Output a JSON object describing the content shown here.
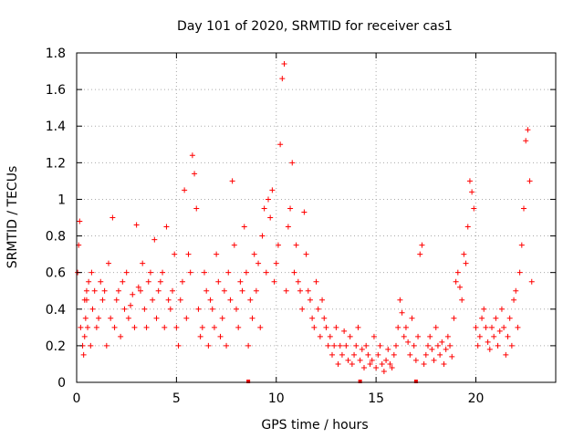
{
  "chart_data": {
    "type": "scatter",
    "title": "Day 101 of 2020, SRMTID for receiver cas1",
    "xlabel": "GPS time / hours",
    "ylabel": "SRMTID / TECUs",
    "xlim": [
      0,
      24
    ],
    "ylim": [
      0,
      1.8
    ],
    "x_ticks": [
      0,
      5,
      10,
      15,
      20
    ],
    "x_tick_labels": [
      "0",
      "5",
      "10",
      "15",
      "20"
    ],
    "y_ticks": [
      0,
      0.2,
      0.4,
      0.6,
      0.8,
      1,
      1.2,
      1.4,
      1.6,
      1.8
    ],
    "y_tick_labels": [
      "0",
      "0.2",
      "0.4",
      "0.6",
      "0.8",
      "1",
      "1.2",
      "1.4",
      "1.6",
      "1.8"
    ],
    "grid": true,
    "marker": "+",
    "color": "#ff0000",
    "x_data_markers": [
      8.6,
      14.2,
      17.0
    ],
    "series": [
      {
        "name": "SRMTID",
        "x": [
          0.05,
          0.1,
          0.15,
          0.2,
          0.3,
          0.35,
          0.4,
          0.45,
          0.5,
          0.55,
          0.6,
          0.7,
          0.75,
          0.8,
          0.9,
          1.0,
          1.1,
          1.2,
          1.3,
          1.4,
          1.5,
          1.6,
          1.7,
          1.8,
          1.9,
          2.0,
          2.1,
          2.2,
          2.3,
          2.4,
          2.5,
          2.6,
          2.7,
          2.8,
          2.9,
          3.0,
          3.1,
          3.2,
          3.3,
          3.4,
          3.5,
          3.6,
          3.7,
          3.8,
          3.9,
          4.0,
          4.1,
          4.2,
          4.3,
          4.4,
          4.5,
          4.6,
          4.7,
          4.8,
          4.9,
          5.0,
          5.1,
          5.2,
          5.3,
          5.4,
          5.5,
          5.6,
          5.7,
          5.8,
          5.9,
          6.0,
          6.1,
          6.2,
          6.3,
          6.4,
          6.5,
          6.6,
          6.7,
          6.8,
          6.9,
          7.0,
          7.1,
          7.2,
          7.3,
          7.4,
          7.5,
          7.6,
          7.7,
          7.8,
          7.9,
          8.0,
          8.1,
          8.2,
          8.3,
          8.4,
          8.5,
          8.6,
          8.7,
          8.8,
          8.9,
          9.0,
          9.1,
          9.2,
          9.3,
          9.4,
          9.5,
          9.6,
          9.7,
          9.8,
          9.9,
          10.0,
          10.1,
          10.2,
          10.3,
          10.4,
          10.5,
          10.6,
          10.7,
          10.8,
          10.9,
          11.0,
          11.1,
          11.2,
          11.3,
          11.4,
          11.5,
          11.6,
          11.7,
          11.8,
          11.9,
          12.0,
          12.1,
          12.2,
          12.3,
          12.4,
          12.5,
          12.6,
          12.7,
          12.8,
          12.9,
          13.0,
          13.1,
          13.2,
          13.3,
          13.4,
          13.5,
          13.6,
          13.7,
          13.8,
          13.9,
          14.0,
          14.1,
          14.2,
          14.3,
          14.4,
          14.5,
          14.6,
          14.7,
          14.8,
          14.9,
          15.0,
          15.1,
          15.2,
          15.3,
          15.4,
          15.5,
          15.6,
          15.7,
          15.8,
          15.9,
          16.0,
          16.1,
          16.2,
          16.3,
          16.4,
          16.5,
          16.6,
          16.7,
          16.8,
          16.9,
          17.0,
          17.1,
          17.2,
          17.3,
          17.4,
          17.5,
          17.6,
          17.7,
          17.8,
          17.9,
          18.0,
          18.1,
          18.2,
          18.3,
          18.4,
          18.5,
          18.6,
          18.7,
          18.8,
          18.9,
          19.0,
          19.1,
          19.2,
          19.3,
          19.4,
          19.5,
          19.6,
          19.7,
          19.8,
          19.9,
          20.0,
          20.1,
          20.2,
          20.3,
          20.4,
          20.5,
          20.6,
          20.7,
          20.8,
          20.9,
          21.0,
          21.1,
          21.2,
          21.3,
          21.4,
          21.5,
          21.6,
          21.7,
          21.8,
          21.9,
          22.0,
          22.1,
          22.2,
          22.3,
          22.4,
          22.5,
          22.6,
          22.7,
          22.8,
          0.4,
          0.5,
          0.6,
          0.75,
          0.88,
          0.3,
          0.2,
          0.15,
          0.25,
          0.35,
          0.45,
          0.3,
          0.55,
          0.2,
          0.6,
          0.4,
          0.5,
          0.3,
          0.35,
          0.55,
          0.45,
          0.5,
          0.2,
          0.65,
          0.35,
          0.9,
          0.3,
          0.45,
          0.5,
          0.25,
          0.55,
          0.4,
          0.6,
          0.35,
          0.42,
          0.48,
          0.3,
          0.86,
          0.52,
          0.5,
          0.65,
          0.4,
          0.3,
          0.55,
          0.6,
          0.45,
          0.78,
          0.35,
          0.5,
          0.55,
          0.6,
          0.3,
          0.85,
          0.45,
          0.4,
          0.5,
          0.7,
          0.3,
          0.2,
          0.45,
          0.55,
          1.05,
          0.35,
          0.7,
          0.6,
          1.24,
          1.14,
          0.95,
          0.4,
          0.25,
          0.3,
          0.6,
          0.5,
          0.2,
          0.45,
          0.4,
          0.3,
          0.7,
          0.55,
          0.25,
          0.35,
          0.5,
          0.2,
          0.6,
          0.45,
          1.1,
          0.75,
          0.4,
          0.3,
          0.55,
          0.5,
          0.85,
          0.6,
          0.2,
          0.45,
          0.35,
          0.7,
          0.5,
          0.65,
          0.3,
          0.8,
          0.95,
          0.6,
          1.0,
          0.9,
          1.05,
          0.55,
          0.65,
          0.75,
          1.3,
          1.66,
          1.74,
          0.5,
          0.85,
          0.95,
          1.2,
          0.6,
          0.75,
          0.55,
          0.5,
          0.4,
          0.93,
          0.7,
          0.5,
          0.45,
          0.35,
          0.3,
          0.55,
          0.4,
          0.25,
          0.45,
          0.35,
          0.3,
          0.2,
          0.25,
          0.15,
          0.2,
          0.3,
          0.1,
          0.2,
          0.15,
          0.28,
          0.2,
          0.12,
          0.25,
          0.1,
          0.15,
          0.2,
          0.3,
          0.12,
          0.18,
          0.08,
          0.2,
          0.15,
          0.1,
          0.12,
          0.25,
          0.08,
          0.15,
          0.2,
          0.1,
          0.06,
          0.12,
          0.18,
          0.1,
          0.08,
          0.15,
          0.2,
          0.3,
          0.45,
          0.38,
          0.25,
          0.3,
          0.22,
          0.15,
          0.35,
          0.2,
          0.12,
          0.25,
          0.7,
          0.75,
          0.1,
          0.15,
          0.2,
          0.25,
          0.18,
          0.12,
          0.3,
          0.2,
          0.15,
          0.22,
          0.1,
          0.18,
          0.25,
          0.2,
          0.14,
          0.35,
          0.55,
          0.6,
          0.52,
          0.45,
          0.7,
          0.65,
          0.85,
          1.1,
          1.04,
          0.95,
          0.3,
          0.2,
          0.25,
          0.35,
          0.4,
          0.3,
          0.22,
          0.18,
          0.3,
          0.25,
          0.35,
          0.2,
          0.28,
          0.4,
          0.3,
          0.15,
          0.25,
          0.35,
          0.2,
          0.45,
          0.5,
          0.3,
          0.6,
          0.75,
          0.95,
          1.32,
          1.38,
          1.1,
          0.55,
          0.45,
          0.5
        ]
      }
    ]
  }
}
